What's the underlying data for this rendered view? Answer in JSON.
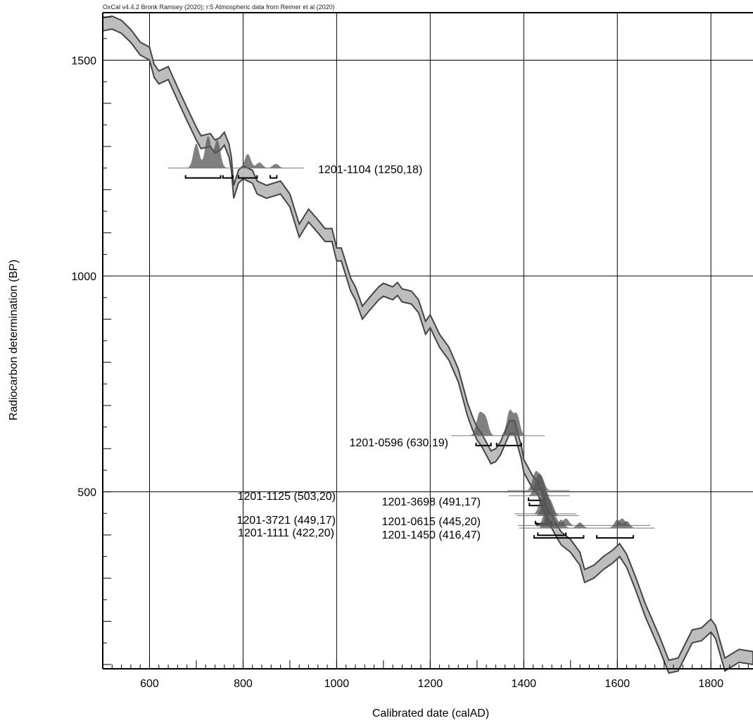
{
  "chart_data": {
    "type": "line",
    "credit": "OxCal v4.4.2 Bronk Ramsey (2020); r:5 Atmospheric data from Reimer et al (2020)",
    "xlabel": "Calibrated date (calAD)",
    "ylabel": "Radiocarbon determination (BP)",
    "xlim": [
      500,
      1890
    ],
    "ylim": [
      90,
      1610
    ],
    "x_ticks": [
      600,
      800,
      1000,
      1200,
      1400,
      1600,
      1800
    ],
    "y_ticks": [
      500,
      1000,
      1500
    ],
    "grid": true,
    "curve_band_half_width": 15,
    "calibration_curve": [
      [
        500,
        1583
      ],
      [
        520,
        1587
      ],
      [
        540,
        1577
      ],
      [
        560,
        1556
      ],
      [
        580,
        1527
      ],
      [
        600,
        1515
      ],
      [
        610,
        1475
      ],
      [
        620,
        1460
      ],
      [
        640,
        1470
      ],
      [
        660,
        1422
      ],
      [
        680,
        1375
      ],
      [
        700,
        1330
      ],
      [
        710,
        1310
      ],
      [
        730,
        1315
      ],
      [
        740,
        1300
      ],
      [
        750,
        1305
      ],
      [
        760,
        1318
      ],
      [
        770,
        1290
      ],
      [
        775,
        1260
      ],
      [
        780,
        1195
      ],
      [
        790,
        1230
      ],
      [
        800,
        1240
      ],
      [
        820,
        1230
      ],
      [
        830,
        1205
      ],
      [
        850,
        1195
      ],
      [
        880,
        1205
      ],
      [
        900,
        1175
      ],
      [
        920,
        1105
      ],
      [
        940,
        1140
      ],
      [
        960,
        1115
      ],
      [
        975,
        1095
      ],
      [
        990,
        1095
      ],
      [
        1000,
        1050
      ],
      [
        1010,
        1050
      ],
      [
        1030,
        980
      ],
      [
        1040,
        960
      ],
      [
        1055,
        915
      ],
      [
        1070,
        935
      ],
      [
        1090,
        960
      ],
      [
        1100,
        968
      ],
      [
        1120,
        960
      ],
      [
        1130,
        970
      ],
      [
        1140,
        955
      ],
      [
        1160,
        950
      ],
      [
        1175,
        930
      ],
      [
        1190,
        880
      ],
      [
        1200,
        895
      ],
      [
        1220,
        850
      ],
      [
        1240,
        820
      ],
      [
        1260,
        770
      ],
      [
        1280,
        690
      ],
      [
        1290,
        660
      ],
      [
        1300,
        635
      ],
      [
        1310,
        620
      ],
      [
        1330,
        580
      ],
      [
        1340,
        585
      ],
      [
        1350,
        600
      ],
      [
        1370,
        650
      ],
      [
        1380,
        650
      ],
      [
        1395,
        590
      ],
      [
        1400,
        560
      ],
      [
        1420,
        520
      ],
      [
        1430,
        510
      ],
      [
        1440,
        480
      ],
      [
        1450,
        445
      ],
      [
        1460,
        430
      ],
      [
        1470,
        410
      ],
      [
        1480,
        392
      ],
      [
        1500,
        375
      ],
      [
        1520,
        345
      ],
      [
        1530,
        305
      ],
      [
        1550,
        315
      ],
      [
        1570,
        335
      ],
      [
        1590,
        350
      ],
      [
        1605,
        365
      ],
      [
        1620,
        340
      ],
      [
        1640,
        285
      ],
      [
        1660,
        225
      ],
      [
        1690,
        150
      ],
      [
        1710,
        95
      ],
      [
        1730,
        100
      ],
      [
        1760,
        165
      ],
      [
        1780,
        170
      ],
      [
        1800,
        190
      ],
      [
        1810,
        175
      ],
      [
        1830,
        100
      ],
      [
        1860,
        120
      ],
      [
        1890,
        115
      ]
    ],
    "samples": [
      {
        "label": "1201-1104 (1250,18)",
        "bp": 1250,
        "prob_peaks": [
          [
            700,
            35
          ],
          [
            725,
            45
          ],
          [
            745,
            40
          ],
          [
            810,
            20
          ],
          [
            835,
            8
          ],
          [
            870,
            6
          ]
        ],
        "ranges": [
          [
            677,
            752
          ],
          [
            757,
            778
          ],
          [
            790,
            830
          ],
          [
            858,
            872
          ]
        ]
      },
      {
        "label": "1201-0596 (630,19)",
        "bp": 630,
        "prob_peaks": [
          [
            1305,
            30
          ],
          [
            1318,
            25
          ],
          [
            1370,
            35
          ],
          [
            1385,
            30
          ]
        ],
        "ranges": [
          [
            1298,
            1330
          ],
          [
            1342,
            1395
          ]
        ]
      },
      {
        "label": "1201-1125 (503,20)",
        "bp": 503,
        "prob_peaks": [
          [
            1425,
            25
          ],
          [
            1438,
            18
          ]
        ],
        "ranges": [
          [
            1410,
            1445
          ]
        ]
      },
      {
        "label": "1201-3698 (491,17)",
        "bp": 491,
        "prob_peaks": [
          [
            1428,
            20
          ],
          [
            1438,
            22
          ]
        ],
        "ranges": [
          [
            1412,
            1445
          ]
        ]
      },
      {
        "label": "1201-3721 (449,17)",
        "bp": 449,
        "prob_peaks": [
          [
            1440,
            30
          ],
          [
            1452,
            22
          ]
        ],
        "ranges": [
          [
            1425,
            1460
          ]
        ]
      },
      {
        "label": "1201-0615 (445,20)",
        "bp": 445,
        "prob_peaks": [
          [
            1445,
            28
          ],
          [
            1458,
            18
          ]
        ],
        "ranges": [
          [
            1428,
            1468
          ]
        ]
      },
      {
        "label": "1201-1111 (422,20)",
        "bp": 422,
        "prob_peaks": [
          [
            1448,
            25
          ],
          [
            1465,
            15
          ],
          [
            1490,
            10
          ],
          [
            1610,
            10
          ]
        ],
        "ranges": [
          [
            1430,
            1490
          ]
        ]
      },
      {
        "label": "1201-1450 (416,47)",
        "bp": 416,
        "prob_peaks": [
          [
            1450,
            20
          ],
          [
            1480,
            12
          ],
          [
            1520,
            8
          ],
          [
            1600,
            12
          ],
          [
            1620,
            10
          ]
        ],
        "ranges": [
          [
            1422,
            1528
          ],
          [
            1556,
            1634
          ]
        ]
      }
    ]
  }
}
